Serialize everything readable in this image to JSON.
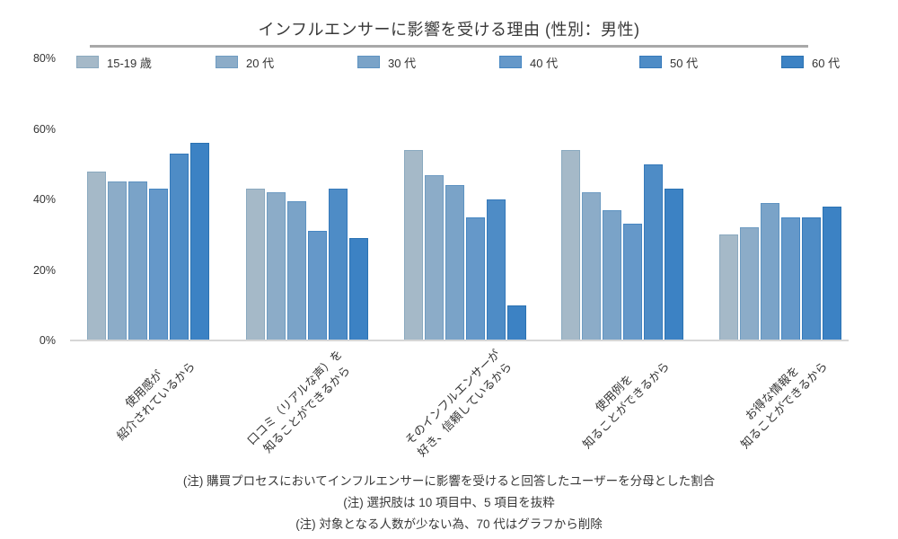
{
  "title": "インフルエンサーに影響を受ける理由 (性別：男性)",
  "chart_data": {
    "type": "bar",
    "title": "インフルエンサーに影響を受ける理由 (性別：男性)",
    "xlabel": "",
    "ylabel": "",
    "ylim": [
      0,
      80
    ],
    "ytick_values": [
      80,
      60,
      40,
      20,
      0
    ],
    "ytick_suffix": "%",
    "grid": false,
    "legend_position": "top",
    "categories": [
      "使用感が\n紹介されているから",
      "口コミ（リアルな声）を\n知ることができるから",
      "そのインフルエンサーが\n好き、信頼しているから",
      "使用例を\n知ることができるから",
      "お得な情報を\n知ることができるから"
    ],
    "series": [
      {
        "name": "15-19 歳",
        "color": "#a5b9c8",
        "border_color": "#8aa9bf",
        "values": [
          48,
          43,
          54,
          54,
          30
        ]
      },
      {
        "name": "20 代",
        "color": "#8cacc8",
        "border_color": "#6f9cc2",
        "values": [
          45,
          42,
          47,
          42,
          32
        ]
      },
      {
        "name": "30 代",
        "color": "#7aa3c8",
        "border_color": "#5e93c1",
        "values": [
          45,
          39.5,
          44,
          37,
          39
        ]
      },
      {
        "name": "40 代",
        "color": "#6598c9",
        "border_color": "#4586c2",
        "values": [
          43,
          31,
          35,
          33,
          35
        ]
      },
      {
        "name": "50 代",
        "color": "#4e8cc6",
        "border_color": "#3579ba",
        "values": [
          53,
          43,
          40,
          50,
          35
        ]
      },
      {
        "name": "60 代",
        "color": "#3c82c4",
        "border_color": "#2a72b2",
        "values": [
          56,
          29,
          10,
          43,
          38
        ]
      }
    ]
  },
  "notes": [
    "(注) 購買プロセスにおいてインフルエンサーに影響を受けると回答したユーザーを分母とした割合",
    "(注) 選択肢は 10 項目中、5 項目を抜粋",
    "(注) 対象となる人数が少ない為、70 代はグラフから削除"
  ]
}
